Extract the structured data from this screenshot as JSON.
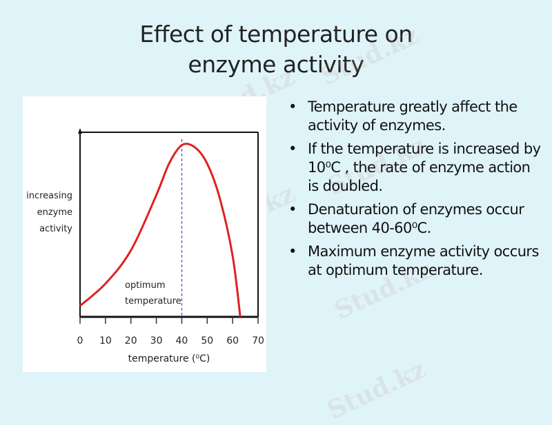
{
  "slide": {
    "title_line1": "Effect of temperature on",
    "title_line2": "enzyme activity",
    "bullets": [
      "Temperature greatly affect the activity of enzymes.",
      "If the temperature is increased by 10⁰C , the rate of enzyme action is doubled.",
      "Denaturation of enzymes occur between 40-60⁰C.",
      "Maximum enzyme activity occurs at optimum temperature."
    ],
    "watermark": "Stud.kz",
    "colors": {
      "background": "#dff4f9",
      "curve": "#e02020",
      "optimum_line": "#5555cc"
    }
  },
  "chart_data": {
    "type": "line",
    "title": "",
    "xlabel": "temperature (⁰C)",
    "ylabel": "increasing enzyme activity",
    "ylabel_lines": [
      "increasing",
      "enzyme",
      "activity"
    ],
    "xlim": [
      0,
      70
    ],
    "x_ticks": [
      "0",
      "10",
      "20",
      "30",
      "40",
      "50",
      "60",
      "70"
    ],
    "annotation": {
      "text_lines": [
        "optimum",
        "temperature"
      ],
      "x": 40
    },
    "series": [
      {
        "name": "enzyme activity",
        "x": [
          0,
          10,
          20,
          30,
          35,
          40,
          45,
          50,
          55,
          60,
          63
        ],
        "values": [
          6,
          18,
          36,
          66,
          83,
          93,
          92,
          83,
          64,
          33,
          0
        ]
      }
    ],
    "ylim": [
      0,
      100
    ]
  }
}
